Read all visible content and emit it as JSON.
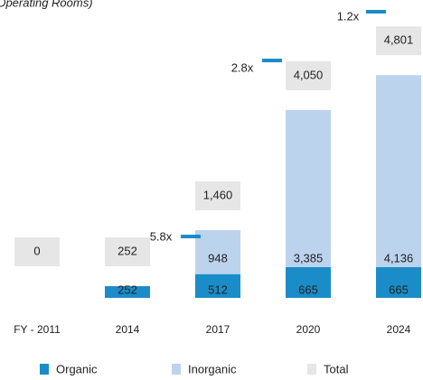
{
  "chart_data": {
    "type": "bar",
    "stacked": true,
    "title": "(Operating Rooms)",
    "categories": [
      "FY - 2011",
      "2014",
      "2017",
      "2020",
      "2024"
    ],
    "series": [
      {
        "name": "Organic",
        "color": "#1a8cc8",
        "values": [
          null,
          252,
          512,
          665,
          665
        ]
      },
      {
        "name": "Inorganic",
        "color": "#bcd3ee",
        "values": [
          null,
          null,
          948,
          3385,
          4136
        ],
        "value_labels": [
          null,
          null,
          "948",
          "3,385",
          "4,136"
        ]
      },
      {
        "name": "Total",
        "color": "#e6e6e6",
        "values": [
          0,
          252,
          1460,
          4050,
          4801
        ],
        "value_labels": [
          "0",
          "252",
          "1,460",
          "4,050",
          "4,801"
        ]
      }
    ],
    "annotations": [
      "5.8x",
      "2.8x",
      "1.2x"
    ],
    "ylim": [
      0,
      5000
    ]
  }
}
